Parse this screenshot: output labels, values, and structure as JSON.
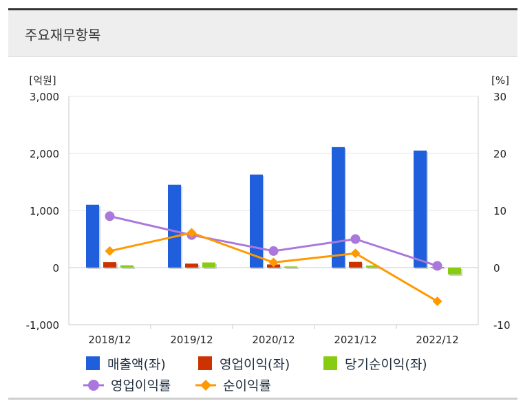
{
  "section_title": "주요재무항목",
  "chart_data": {
    "type": "bar",
    "categories": [
      "2018/12",
      "2019/12",
      "2020/12",
      "2021/12",
      "2022/12"
    ],
    "left_axis": {
      "unit": "[억원]",
      "ylim": [
        -1000,
        3000
      ],
      "ticks": [
        -1000,
        0,
        1000,
        2000,
        3000
      ],
      "tick_labels": [
        "-1,000",
        "0",
        "1,000",
        "2,000",
        "3,000"
      ]
    },
    "right_axis": {
      "unit": "[%]",
      "ylim": [
        -10,
        30
      ],
      "ticks": [
        -10,
        0,
        10,
        20,
        30
      ],
      "tick_labels": [
        "-10",
        "0",
        "10",
        "20",
        "30"
      ]
    },
    "bar_series": [
      {
        "name": "매출액(좌)",
        "color": "#1f5fdb",
        "values": [
          1100,
          1450,
          1630,
          2110,
          2050
        ]
      },
      {
        "name": "영업이익(좌)",
        "color": "#cc3300",
        "values": [
          95,
          70,
          55,
          100,
          10
        ]
      },
      {
        "name": "당기순이익(좌)",
        "color": "#88cc11",
        "values": [
          40,
          90,
          20,
          35,
          -120
        ]
      }
    ],
    "line_series": [
      {
        "name": "영업이익률",
        "color": "#aa77dd",
        "marker": "circle",
        "values": [
          9.0,
          5.7,
          2.9,
          5.0,
          0.3
        ]
      },
      {
        "name": "순이익률",
        "color": "#ff9900",
        "marker": "diamond",
        "values": [
          2.9,
          6.1,
          0.9,
          2.5,
          -5.9
        ]
      }
    ],
    "grid": true,
    "legend_position": "bottom"
  }
}
